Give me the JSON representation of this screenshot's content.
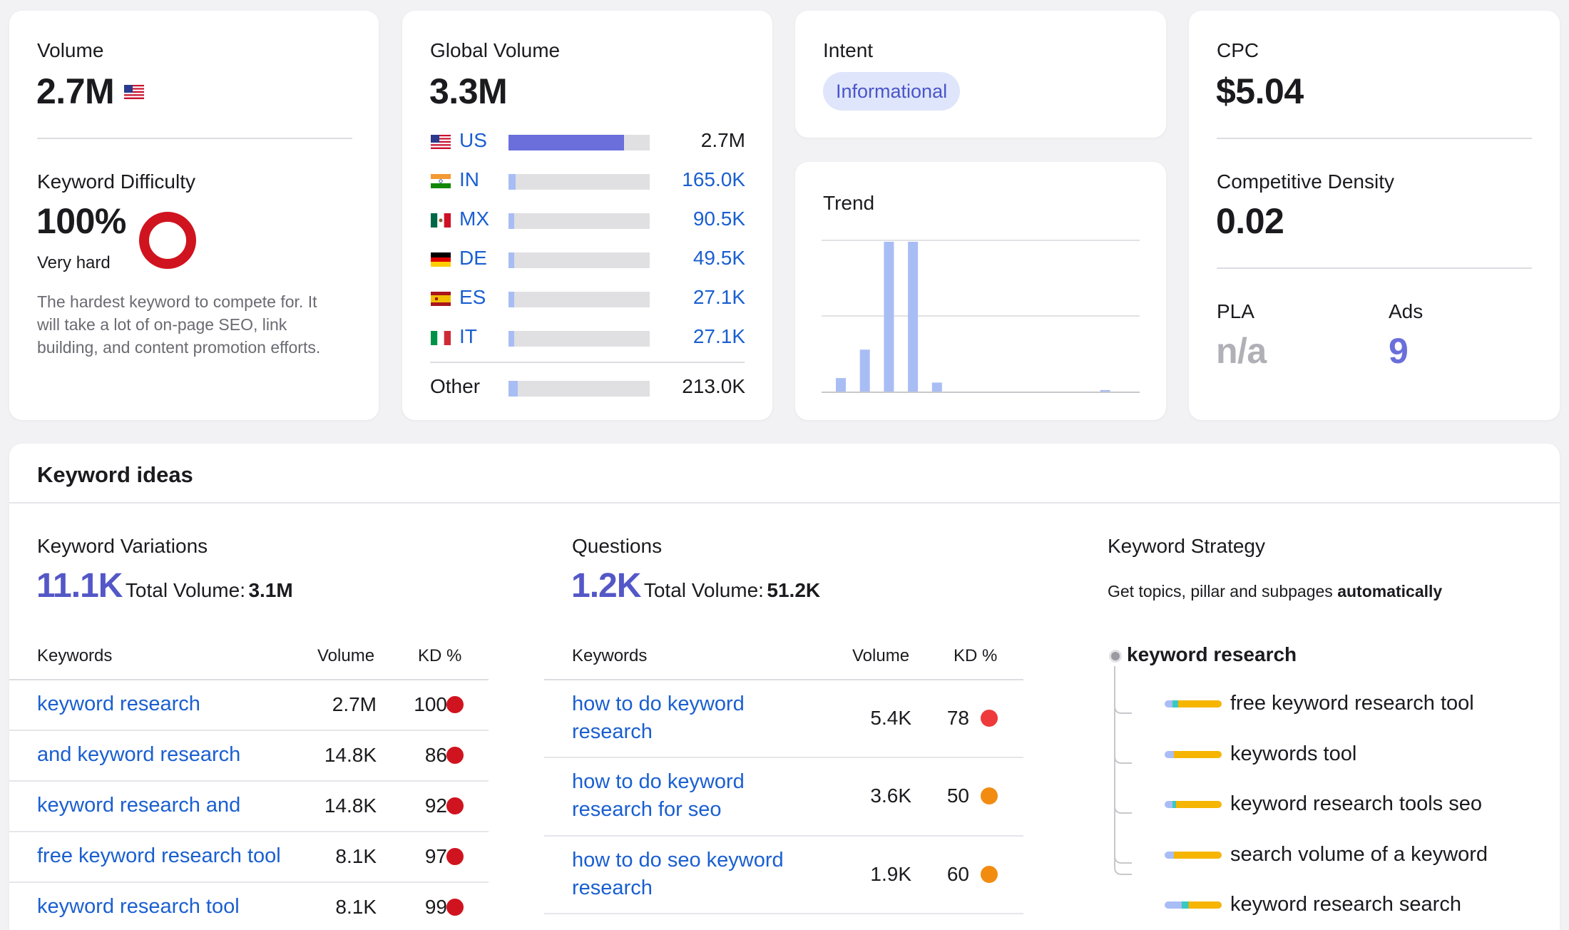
{
  "volume": {
    "label": "Volume",
    "value": "2.7M"
  },
  "kd": {
    "label": "Keyword Difficulty",
    "value": "100%",
    "level": "Very hard",
    "percent": 100,
    "description_lines": [
      "The hardest keyword to compete for. It",
      "will take a lot of on-page SEO, link",
      "building, and content promotion efforts."
    ]
  },
  "global_volume": {
    "label": "Global Volume",
    "value": "3.3M",
    "countries": [
      {
        "code": "US",
        "value": "2.7M",
        "share": 0.82,
        "highlight": true
      },
      {
        "code": "IN",
        "value": "165.0K",
        "share": 0.05
      },
      {
        "code": "MX",
        "value": "90.5K",
        "share": 0.028
      },
      {
        "code": "DE",
        "value": "49.5K",
        "share": 0.015
      },
      {
        "code": "ES",
        "value": "27.1K",
        "share": 0.01
      },
      {
        "code": "IT",
        "value": "27.1K",
        "share": 0.01
      }
    ],
    "other": {
      "label": "Other",
      "value": "213.0K",
      "share": 0.065
    }
  },
  "intent": {
    "label": "Intent",
    "badge": "Informational"
  },
  "trend": {
    "label": "Trend",
    "values": [
      0.09,
      0.28,
      1.0,
      1.0,
      0.06,
      0,
      0,
      0,
      0,
      0,
      0,
      0.01
    ]
  },
  "cpc": {
    "label": "CPC",
    "value": "$5.04"
  },
  "competitive_density": {
    "label": "Competitive Density",
    "value": "0.02"
  },
  "pla": {
    "label": "PLA",
    "value": "n/a"
  },
  "ads": {
    "label": "Ads",
    "value": "9"
  },
  "keyword_ideas": {
    "title": "Keyword ideas",
    "variations": {
      "label": "Keyword Variations",
      "count": "11.1K",
      "total_label": "Total Volume:",
      "total_value": "3.1M",
      "headers": {
        "keywords": "Keywords",
        "volume": "Volume",
        "kd": "KD %"
      },
      "rows": [
        {
          "keyword": "keyword research",
          "volume": "2.7M",
          "kd": "100",
          "color": "#d0141f"
        },
        {
          "keyword": "and keyword research",
          "volume": "14.8K",
          "kd": "86",
          "color": "#d0141f"
        },
        {
          "keyword": "keyword research and",
          "volume": "14.8K",
          "kd": "92",
          "color": "#d0141f"
        },
        {
          "keyword": "free keyword research tool",
          "volume": "8.1K",
          "kd": "97",
          "color": "#d0141f"
        },
        {
          "keyword": "keyword research tool",
          "volume": "8.1K",
          "kd": "99",
          "color": "#d0141f"
        }
      ]
    },
    "questions": {
      "label": "Questions",
      "count": "1.2K",
      "total_label": "Total Volume:",
      "total_value": "51.2K",
      "headers": {
        "keywords": "Keywords",
        "volume": "Volume",
        "kd": "KD %"
      },
      "rows": [
        {
          "keyword_line1": "how to do keyword",
          "keyword_line2": "research",
          "volume": "5.4K",
          "kd": "78",
          "color": "#ee3a3a"
        },
        {
          "keyword_line1": "how to do keyword",
          "keyword_line2": "research for seo",
          "volume": "3.6K",
          "kd": "50",
          "color": "#f28c11"
        },
        {
          "keyword_line1": "how to do seo keyword",
          "keyword_line2": "research",
          "volume": "1.9K",
          "kd": "60",
          "color": "#f28c11"
        }
      ]
    },
    "strategy": {
      "label": "Keyword Strategy",
      "subtitle_prefix": "Get topics, pillar and subpages",
      "subtitle_bold": "automatically",
      "root": "keyword research",
      "children": [
        "free keyword research tool",
        "keywords tool",
        "keyword research tools seo",
        "search volume of a keyword",
        "keyword research search"
      ]
    }
  },
  "colors": {
    "accent": "#6a6fdb",
    "link": "#1a5fd0",
    "bar": "#a9bdf5",
    "kd_red": "#d0141f"
  }
}
